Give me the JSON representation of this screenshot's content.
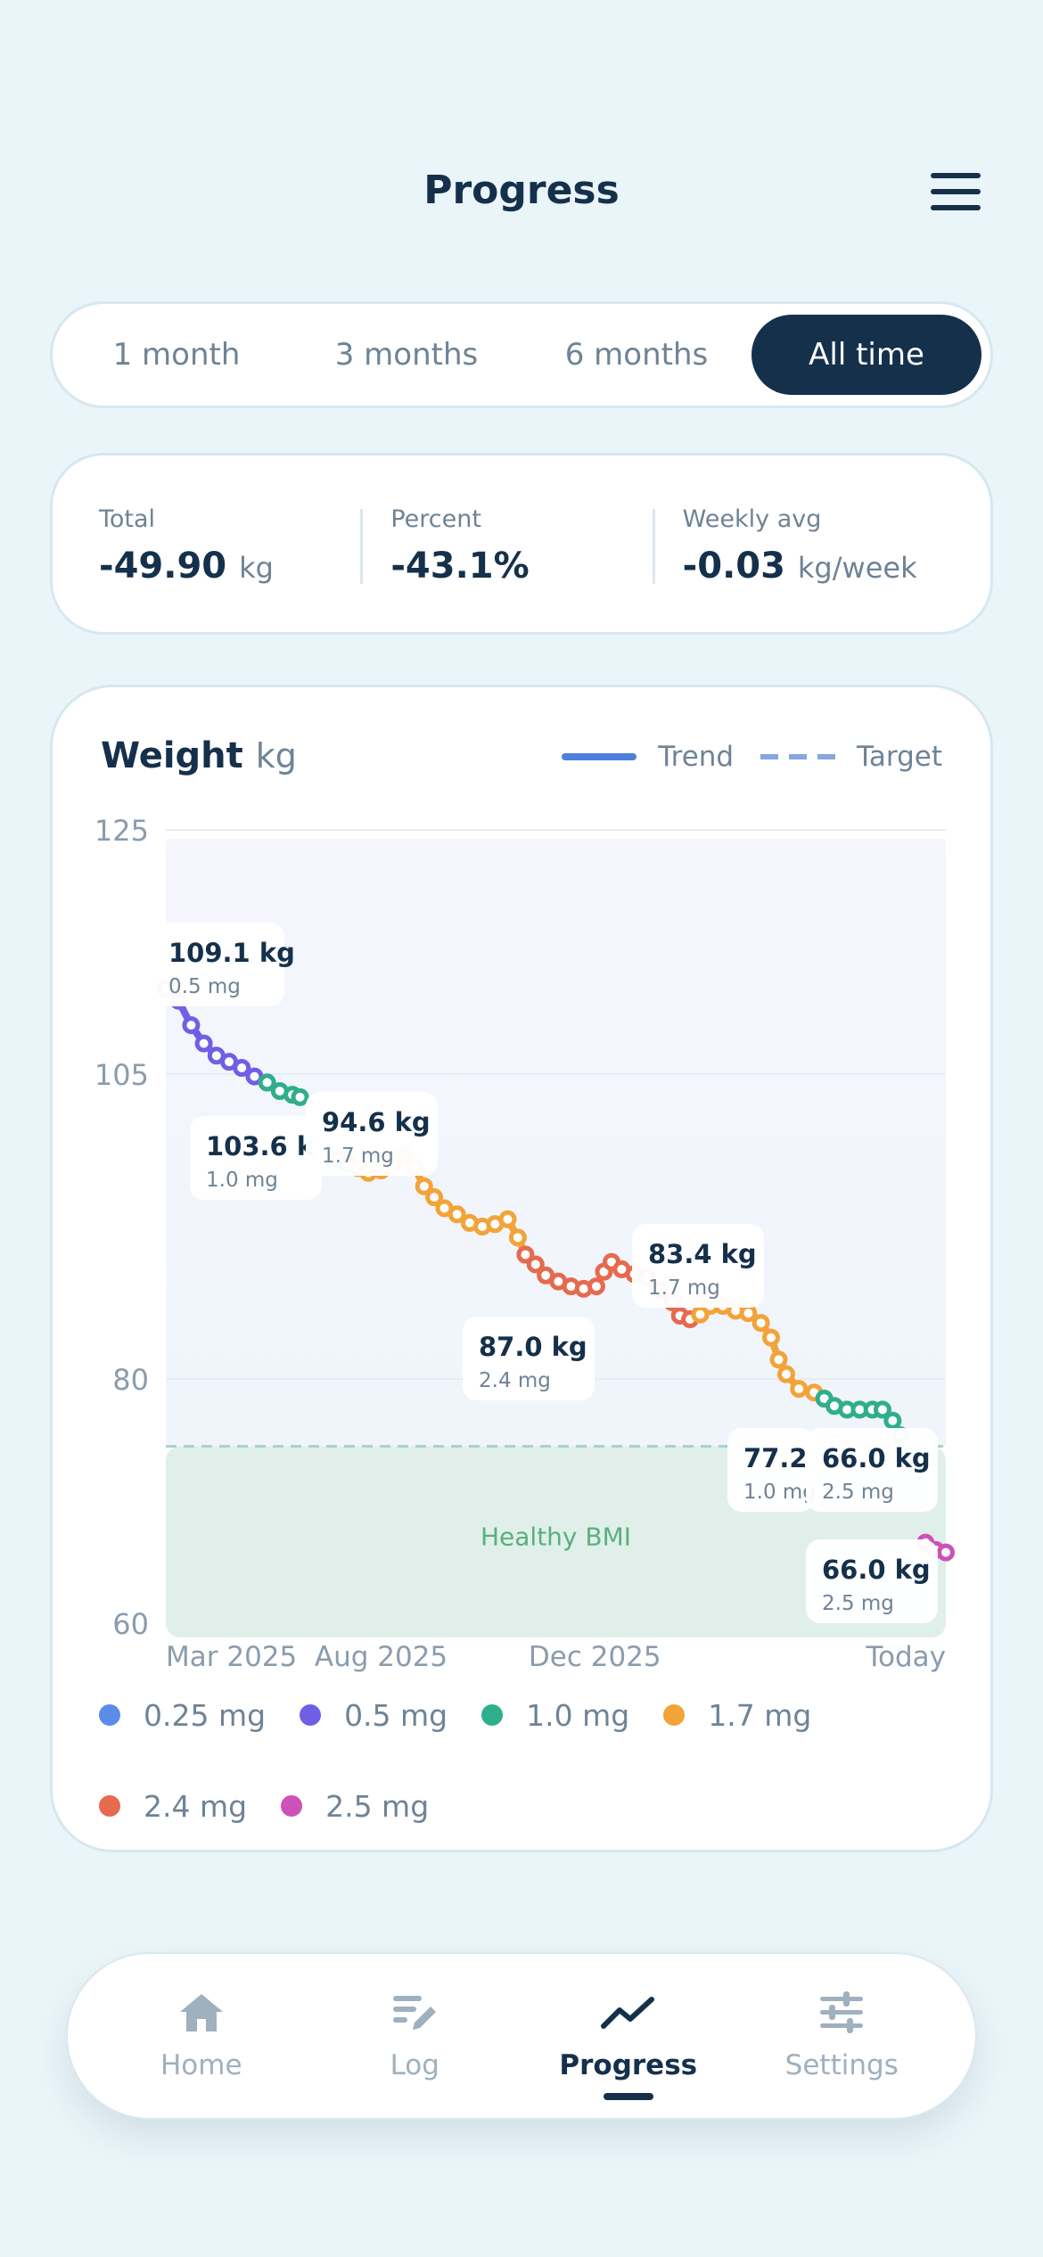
{
  "header": {
    "title": "Progress",
    "menu_icon": "hamburger-menu-icon"
  },
  "ranges": {
    "items": [
      "1 month",
      "3 months",
      "6 months",
      "All time"
    ],
    "selected": "All time"
  },
  "stats": {
    "total": {
      "label": "Total",
      "value": "-49.90",
      "unit": "kg"
    },
    "percent": {
      "label": "Percent",
      "value": "-43.1%"
    },
    "weekly": {
      "label": "Weekly avg",
      "value": "-0.03",
      "unit": "kg/week"
    }
  },
  "chart_card": {
    "title": "Weight",
    "unit": "kg",
    "legend_trend": "Trend",
    "legend_target": "Target",
    "healthy_label": "Healthy BMI"
  },
  "chart_data": {
    "type": "line",
    "title": "Weight",
    "ylabel": "kg",
    "ylim": [
      60,
      125
    ],
    "yticks": [
      "125",
      "105",
      "80",
      "60"
    ],
    "xtick_labels": [
      "Mar 2025",
      "Aug 2025",
      "Dec 2025",
      "Today"
    ],
    "target": 74.5,
    "healthy_bmi_range": [
      58,
      74.5
    ],
    "grid": true,
    "dose_colors": {
      "0.25 mg": "#5a8de8",
      "0.5 mg": "#6f5fe6",
      "1.0 mg": "#2fae8c",
      "1.7 mg": "#f2a33a",
      "2.4 mg": "#e56a4e",
      "2.5 mg": "#cc52b8"
    },
    "segments": [
      {
        "dose": "0.5 mg",
        "points": [
          [
            0.0,
            112.0
          ],
          [
            0.5,
            111.0
          ],
          [
            1.0,
            109.0
          ],
          [
            1.5,
            107.5
          ],
          [
            2.0,
            106.5
          ],
          [
            2.5,
            106.0
          ],
          [
            3.0,
            105.5
          ],
          [
            3.5,
            104.8
          ],
          [
            4.0,
            104.3
          ]
        ]
      },
      {
        "dose": "1.0 mg",
        "points": [
          [
            4.0,
            104.3
          ],
          [
            4.5,
            103.6
          ],
          [
            5.0,
            103.3
          ],
          [
            5.3,
            103.1
          ]
        ]
      },
      {
        "dose": "1.0 mg",
        "points": [
          [
            6.8,
            98.0
          ],
          [
            7.2,
            97.6
          ],
          [
            7.6,
            97.3
          ]
        ]
      },
      {
        "dose": "1.7 mg",
        "points": [
          [
            7.6,
            97.3
          ],
          [
            8.0,
            96.9
          ],
          [
            8.5,
            97.1
          ],
          [
            9.0,
            97.8
          ],
          [
            9.4,
            98.3
          ],
          [
            9.8,
            97.4
          ],
          [
            10.2,
            95.8
          ],
          [
            10.6,
            94.9
          ],
          [
            11.0,
            94.0
          ],
          [
            11.5,
            93.5
          ],
          [
            12.0,
            92.8
          ],
          [
            12.5,
            92.5
          ],
          [
            13.0,
            92.7
          ],
          [
            13.5,
            93.1
          ],
          [
            13.9,
            91.6
          ],
          [
            14.2,
            90.2
          ]
        ]
      },
      {
        "dose": "2.4 mg",
        "points": [
          [
            14.2,
            90.2
          ],
          [
            14.6,
            89.4
          ],
          [
            15.0,
            88.5
          ],
          [
            15.5,
            88.0
          ],
          [
            16.0,
            87.6
          ],
          [
            16.5,
            87.4
          ],
          [
            17.0,
            87.6
          ],
          [
            17.3,
            88.8
          ],
          [
            17.6,
            89.6
          ],
          [
            18.0,
            89.0
          ],
          [
            18.5,
            88.6
          ],
          [
            19.0,
            88.3
          ],
          [
            19.5,
            87.3
          ],
          [
            20.0,
            86.3
          ],
          [
            20.3,
            85.2
          ],
          [
            20.7,
            84.9
          ],
          [
            21.1,
            85.3
          ]
        ]
      },
      {
        "dose": "1.7 mg",
        "points": [
          [
            21.1,
            85.3
          ],
          [
            21.5,
            86.0
          ],
          [
            22.0,
            86.0
          ],
          [
            22.5,
            85.6
          ],
          [
            23.0,
            85.4
          ],
          [
            23.5,
            84.6
          ],
          [
            23.9,
            83.4
          ],
          [
            24.2,
            81.6
          ],
          [
            24.5,
            80.4
          ],
          [
            25.0,
            79.2
          ],
          [
            25.6,
            78.9
          ],
          [
            26.0,
            78.4
          ]
        ]
      },
      {
        "dose": "1.0 mg",
        "points": [
          [
            26.0,
            78.4
          ],
          [
            26.4,
            77.8
          ],
          [
            26.9,
            77.5
          ],
          [
            27.4,
            77.5
          ],
          [
            27.9,
            77.5
          ],
          [
            28.3,
            77.5
          ],
          [
            28.7,
            76.6
          ],
          [
            29.0,
            75.4
          ]
        ]
      },
      {
        "dose": "2.5 mg",
        "points": [
          [
            30.0,
            66.6
          ],
          [
            30.4,
            66.0
          ],
          [
            30.8,
            65.8
          ]
        ]
      }
    ],
    "x_max": 30.8,
    "callouts": [
      {
        "weight": "109.1 kg",
        "dose": "0.5 mg",
        "x": 0.0,
        "y": 112.0
      },
      {
        "weight": "103.6 k",
        "dose": "1.0 mg",
        "x": 4.8,
        "y": 103.3
      },
      {
        "weight": "94.6 kg",
        "dose": "1.7 mg",
        "x": 7.0,
        "y": 98.0
      },
      {
        "weight": "87.0 kg",
        "dose": "2.4 mg",
        "x": 15.0,
        "y": 88.0
      },
      {
        "weight": "83.4 kg",
        "dose": "1.7 mg",
        "x": 17.3,
        "y": 89.6
      },
      {
        "weight": "77.2",
        "dose": "1.0 mg",
        "x": 26.8,
        "y": 77.5
      },
      {
        "weight": "66.0 kg",
        "dose": "2.5 mg",
        "x": 30.0,
        "y": 66.6
      },
      {
        "weight": "66.0 kg",
        "dose": "2.5 mg",
        "x": 30.8,
        "y": 65.8
      }
    ]
  },
  "dose_legend": [
    {
      "label": "0.25 mg",
      "color": "#5a8de8"
    },
    {
      "label": "0.5 mg",
      "color": "#6f5fe6"
    },
    {
      "label": "1.0 mg",
      "color": "#2fae8c"
    },
    {
      "label": "1.7 mg",
      "color": "#f2a33a"
    },
    {
      "label": "2.4 mg",
      "color": "#e56a4e"
    },
    {
      "label": "2.5 mg",
      "color": "#cc52b8"
    }
  ],
  "tabbar": {
    "items": [
      {
        "label": "Home",
        "icon": "home-icon"
      },
      {
        "label": "Log",
        "icon": "edit-list-icon"
      },
      {
        "label": "Progress",
        "icon": "trend-icon"
      },
      {
        "label": "Settings",
        "icon": "sliders-icon"
      }
    ],
    "active": "Progress"
  }
}
